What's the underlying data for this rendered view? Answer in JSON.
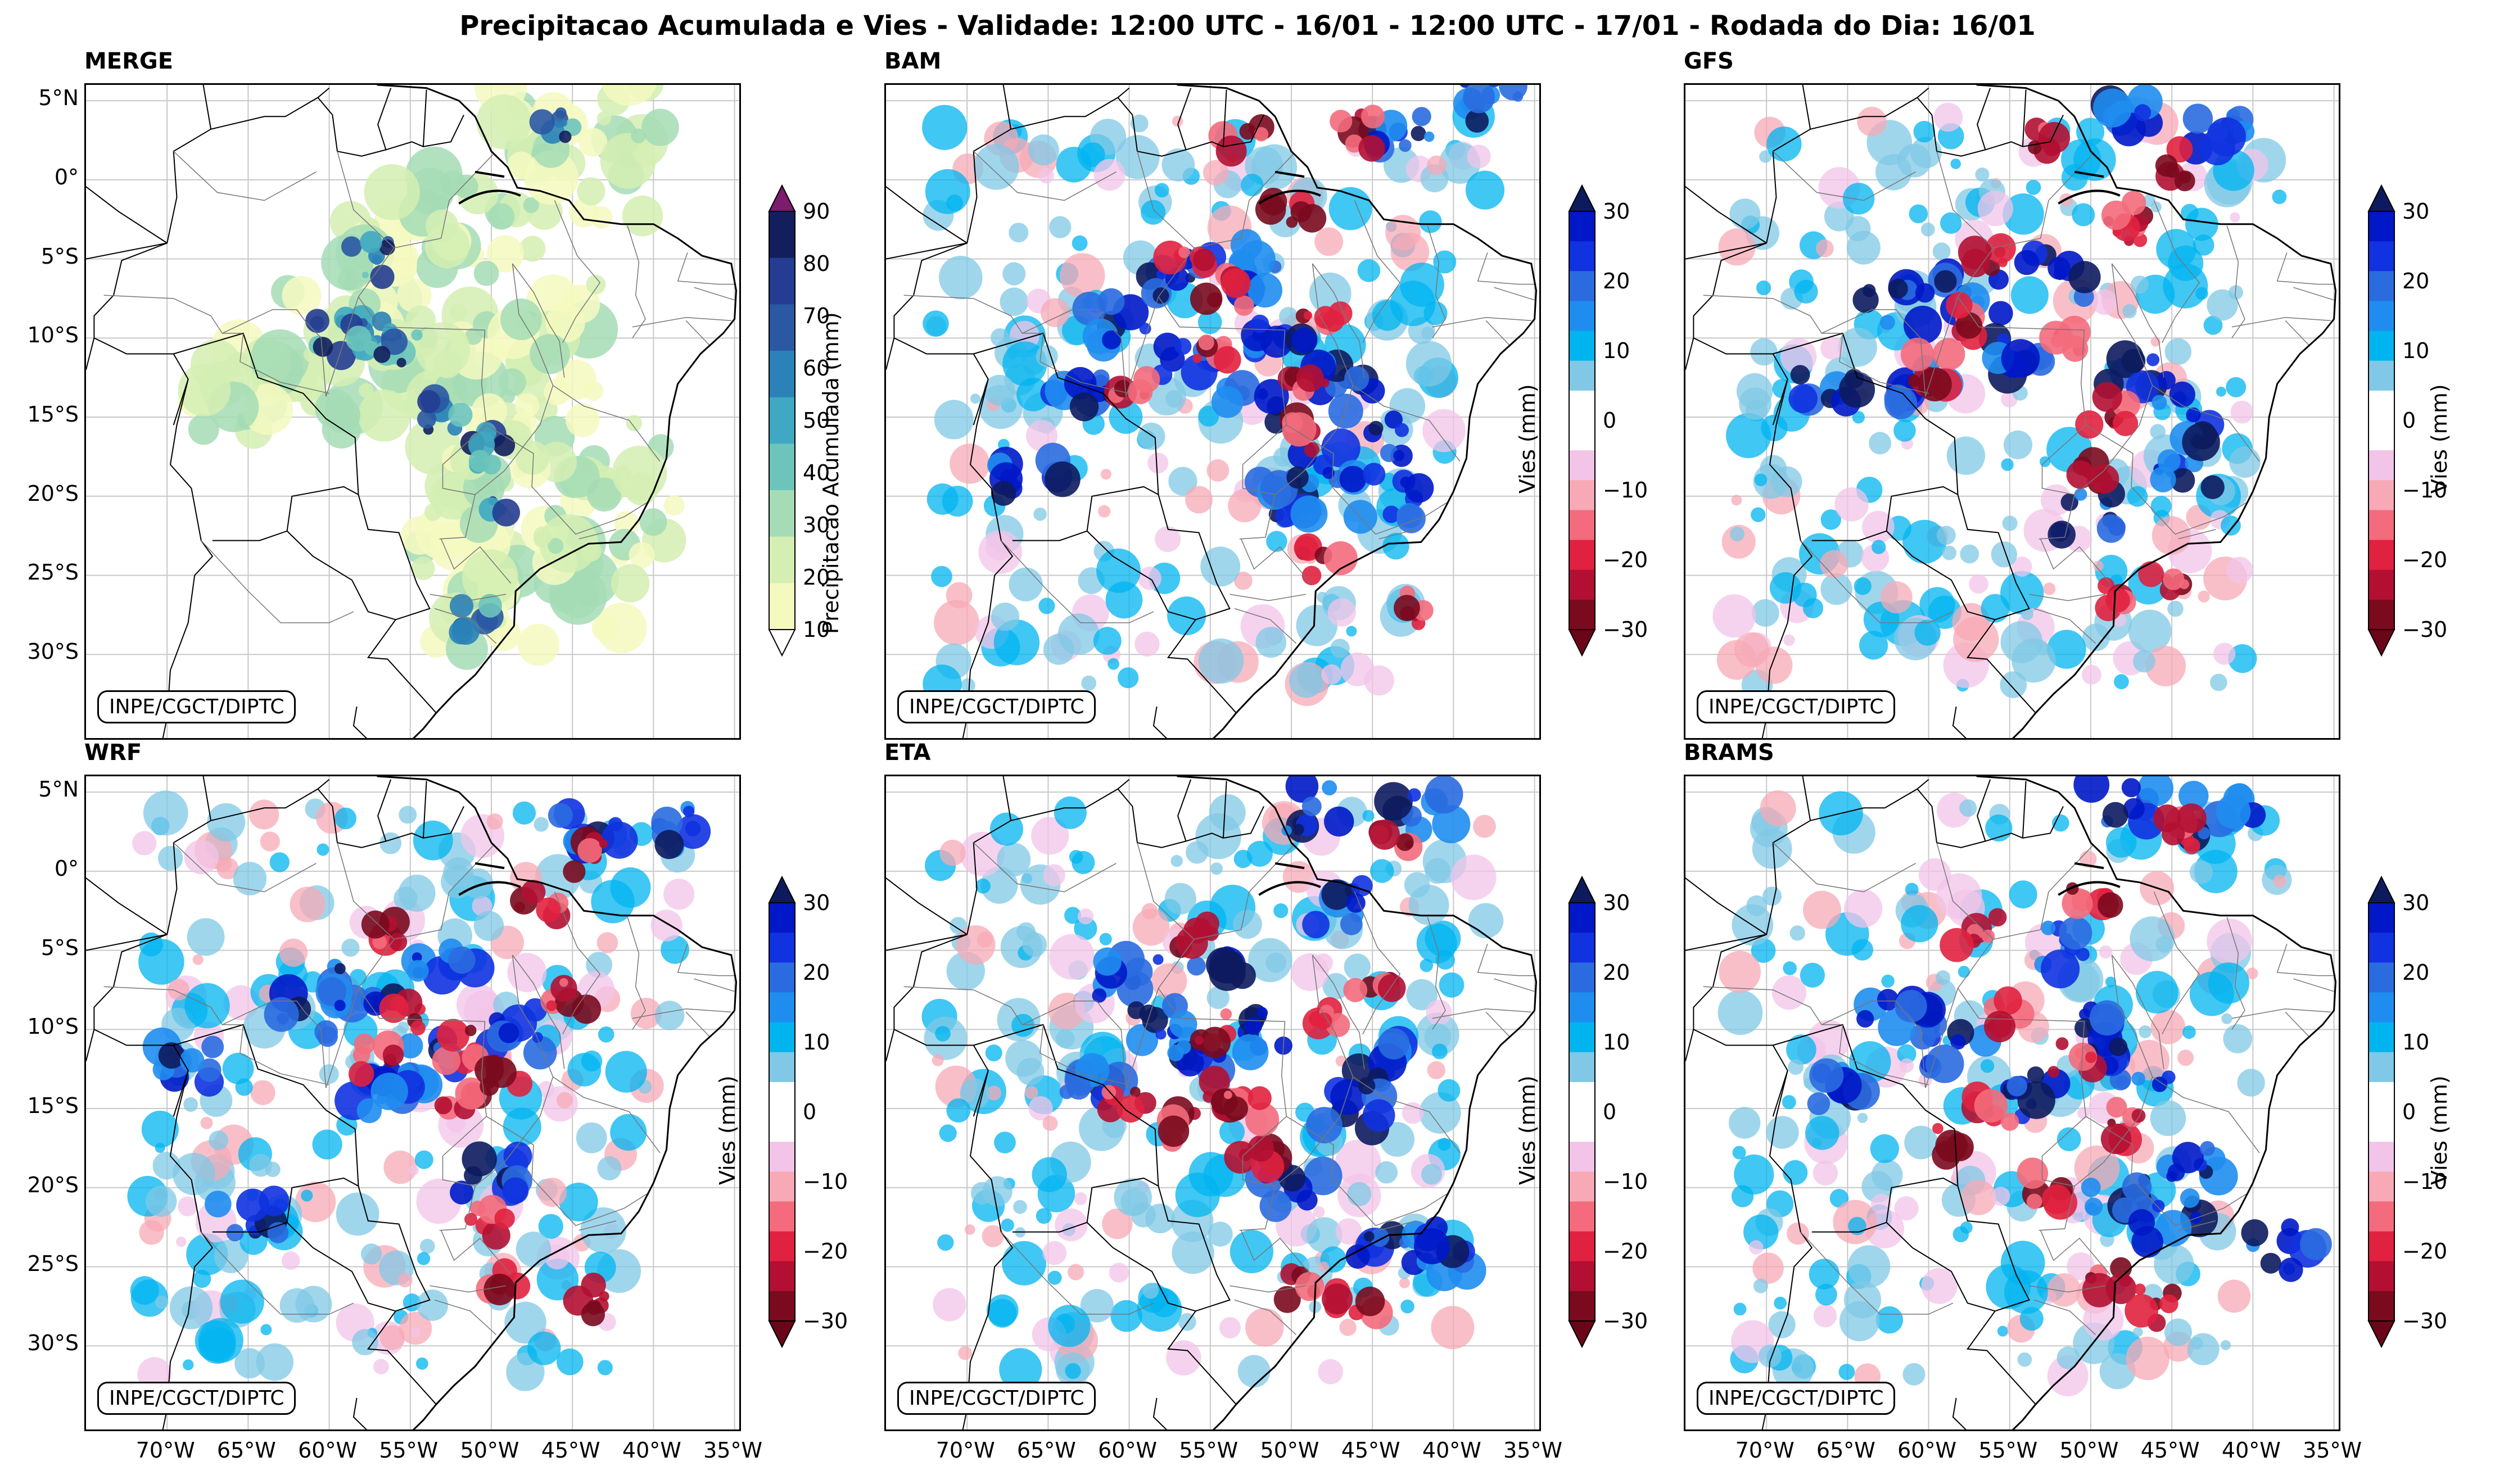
{
  "title": "Precipitacao Acumulada e Vies - Validade: 12:00 UTC - 16/01 - 12:00 UTC - 17/01 - Rodada do Dia: 16/01",
  "credit": "INPE/CGCT/DIPTC",
  "lat_labels": [
    "5°N",
    "0°",
    "5°S",
    "10°S",
    "15°S",
    "20°S",
    "25°S",
    "30°S"
  ],
  "lon_labels": [
    "70°W",
    "65°W",
    "60°W",
    "55°W",
    "50°W",
    "45°W",
    "40°W",
    "35°W"
  ],
  "panels": [
    {
      "name": "MERGE",
      "type": "precip"
    },
    {
      "name": "BAM",
      "type": "bias"
    },
    {
      "name": "GFS",
      "type": "bias"
    },
    {
      "name": "WRF",
      "type": "bias"
    },
    {
      "name": "ETA",
      "type": "bias"
    },
    {
      "name": "BRAMS",
      "type": "bias"
    }
  ],
  "colorbar_precip": {
    "label": "Precipitacao Acumulada (mm)",
    "ticks": [
      "90",
      "80",
      "70",
      "60",
      "50",
      "40",
      "30",
      "20",
      "10"
    ],
    "colors": [
      "#f4f9c0",
      "#d4eeb3",
      "#a5dcb5",
      "#6cc4bb",
      "#3fa8c2",
      "#2a82b8",
      "#2a58a3",
      "#243c91",
      "#121f5c"
    ],
    "extend_colors": [
      "#ffffff",
      "#7b1c6c"
    ]
  },
  "colorbar_bias": {
    "label": "Vies (mm)",
    "ticks": [
      "30",
      "20",
      "10",
      "0",
      "−10",
      "−20",
      "−30"
    ],
    "colors": [
      "#7a0a1e",
      "#b30f32",
      "#e0213f",
      "#f36b7c",
      "#f7a9b5",
      "#f2c4e8",
      "#ffffff",
      "#ffffff",
      "#80c8e6",
      "#00b4f0",
      "#1f8df0",
      "#2a6be0",
      "#1032e0",
      "#0018c8"
    ],
    "extend_colors": [
      "#6b0518",
      "#0d1b5e"
    ]
  }
}
